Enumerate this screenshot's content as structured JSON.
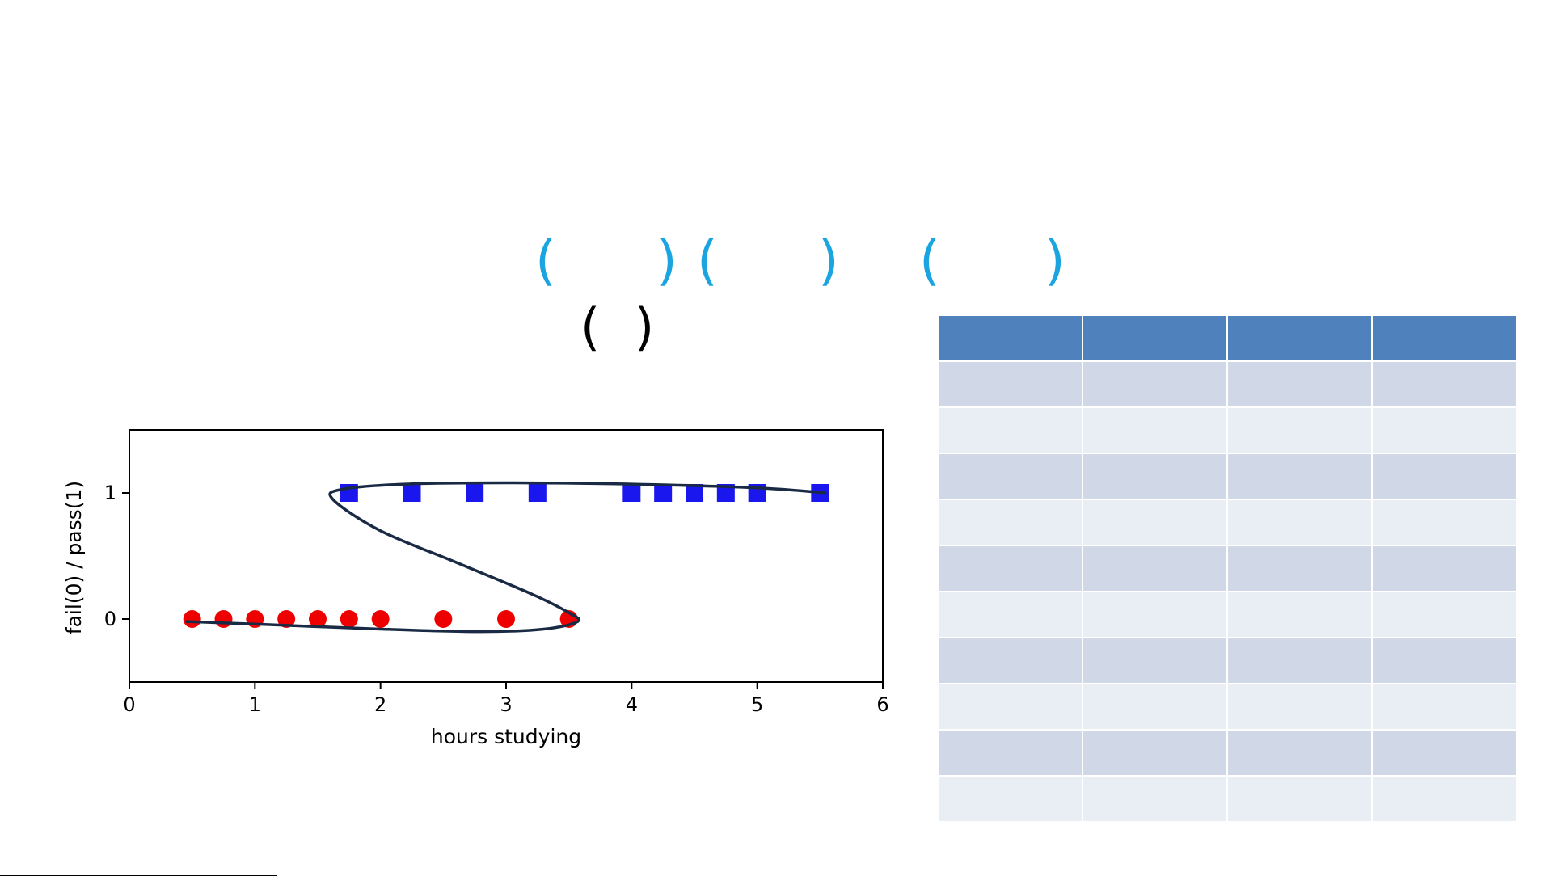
{
  "title_row": {
    "parens": [
      {
        "open": "(",
        "close": ")"
      },
      {
        "open": "(",
        "close": ")"
      },
      {
        "open": "(",
        "close": ")"
      }
    ],
    "color": "#1aa5e0"
  },
  "subtitle_row": {
    "open": "(",
    "close": ")"
  },
  "chart_data": {
    "type": "scatter",
    "xlabel": "hours studying",
    "ylabel": "fail(0) / pass(1)",
    "xlim": [
      0,
      6
    ],
    "ylim": [
      -0.5,
      1.5
    ],
    "xticks": [
      0,
      1,
      2,
      3,
      4,
      5,
      6
    ],
    "yticks": [
      0,
      1
    ],
    "grid": false,
    "series": [
      {
        "marker": "circle",
        "color": "#ee0000",
        "x": [
          0.5,
          0.75,
          1.0,
          1.25,
          1.5,
          1.75,
          2.0,
          2.5,
          3.0,
          3.5
        ],
        "y": [
          0,
          0,
          0,
          0,
          0,
          0,
          0,
          0,
          0,
          0
        ]
      },
      {
        "marker": "square",
        "color": "#1a17ee",
        "x": [
          1.75,
          2.25,
          2.75,
          3.25,
          4.0,
          4.25,
          4.5,
          4.75,
          5.0,
          5.5
        ],
        "y": [
          1,
          1,
          1,
          1,
          1,
          1,
          1,
          1,
          1,
          1
        ]
      }
    ],
    "curve": {
      "color": "#1a2a44",
      "x": [
        0.45,
        1.0,
        2.0,
        2.8,
        3.3,
        3.57,
        3.5,
        3.2,
        2.6,
        2.0,
        1.62,
        1.7,
        2.2,
        3.0,
        4.0,
        5.0,
        5.55
      ],
      "y": [
        -0.02,
        -0.04,
        -0.08,
        -0.1,
        -0.08,
        -0.02,
        0.05,
        0.2,
        0.45,
        0.7,
        0.95,
        1.03,
        1.07,
        1.08,
        1.07,
        1.04,
        1.0
      ]
    }
  },
  "table": {
    "columns": 4,
    "rows": 10,
    "header_color": "#4f81bd",
    "row_colors": [
      "#d0d8e8",
      "#e9edf4"
    ]
  }
}
